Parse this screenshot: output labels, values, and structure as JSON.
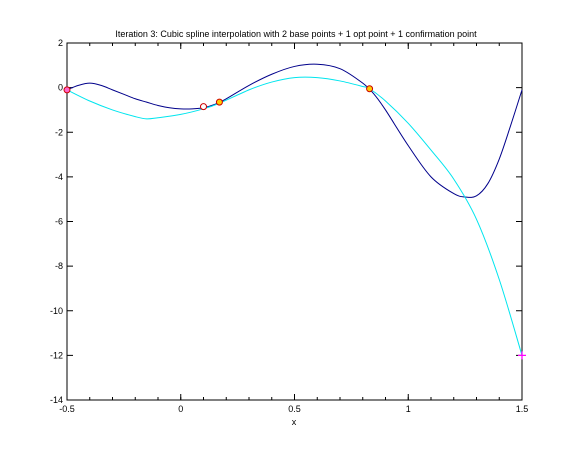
{
  "chart_data": {
    "type": "line",
    "title": "Iteration 3: Cubic spline interpolation with 2 base points + 1 opt point + 1 confirmation point",
    "xlabel": "x",
    "ylabel": "",
    "xlim": [
      -0.5,
      1.5
    ],
    "ylim": [
      -14,
      2
    ],
    "xticks": [
      -0.5,
      0,
      0.5,
      1,
      1.5
    ],
    "xtick_labels": [
      "-0.5",
      "0",
      "0.5",
      "1",
      "1.5"
    ],
    "yticks": [
      -14,
      -12,
      -10,
      -8,
      -6,
      -4,
      -2,
      0,
      2
    ],
    "ytick_labels": [
      "-14",
      "-12",
      "-10",
      "-8",
      "-6",
      "-4",
      "-2",
      "0",
      "2"
    ],
    "grid": false,
    "series": [
      {
        "color": "#00008b",
        "x": [
          -0.5,
          -0.45,
          -0.4,
          -0.35,
          -0.3,
          -0.25,
          -0.2,
          -0.15,
          -0.1,
          -0.05,
          0,
          0.05,
          0.1,
          0.15,
          0.2,
          0.3,
          0.4,
          0.5,
          0.6,
          0.7,
          0.8,
          0.85,
          0.9,
          1.0,
          1.1,
          1.2,
          1.25,
          1.3,
          1.35,
          1.4,
          1.45,
          1.5
        ],
        "y": [
          -0.1,
          0.1,
          0.2,
          0.1,
          -0.1,
          -0.3,
          -0.5,
          -0.65,
          -0.8,
          -0.9,
          -0.95,
          -0.95,
          -0.9,
          -0.75,
          -0.5,
          0.1,
          0.6,
          0.95,
          1.05,
          0.85,
          0.2,
          -0.3,
          -1.0,
          -2.6,
          -4.0,
          -4.75,
          -4.9,
          -4.85,
          -4.3,
          -3.2,
          -1.7,
          -0.1
        ]
      },
      {
        "color": "#00e5ee",
        "x": [
          -0.5,
          -0.4,
          -0.3,
          -0.2,
          -0.15,
          -0.1,
          0,
          0.1,
          0.17,
          0.3,
          0.4,
          0.5,
          0.6,
          0.7,
          0.8,
          0.83,
          0.9,
          1.0,
          1.1,
          1.2,
          1.3,
          1.4,
          1.5
        ],
        "y": [
          -0.1,
          -0.6,
          -1.0,
          -1.3,
          -1.4,
          -1.35,
          -1.2,
          -0.95,
          -0.7,
          -0.1,
          0.25,
          0.45,
          0.45,
          0.3,
          0.05,
          -0.05,
          -0.6,
          -1.6,
          -2.8,
          -4.1,
          -5.9,
          -8.6,
          -12.0
        ]
      }
    ],
    "markers": [
      {
        "x": -0.5,
        "y": -0.1,
        "shape": "circle",
        "stroke": "#cc0000",
        "fill": "#ff66cc"
      },
      {
        "x": 0.1,
        "y": -0.85,
        "shape": "circle",
        "stroke": "#cc0000",
        "fill": "#ffffff"
      },
      {
        "x": 0.17,
        "y": -0.65,
        "shape": "circle",
        "stroke": "#cc0000",
        "fill": "#ffcc00"
      },
      {
        "x": 0.83,
        "y": -0.05,
        "shape": "circle",
        "stroke": "#cc0000",
        "fill": "#ffcc00"
      },
      {
        "x": 1.5,
        "y": -12.0,
        "shape": "plus",
        "stroke": "#ff00ff",
        "fill": "none"
      }
    ]
  }
}
